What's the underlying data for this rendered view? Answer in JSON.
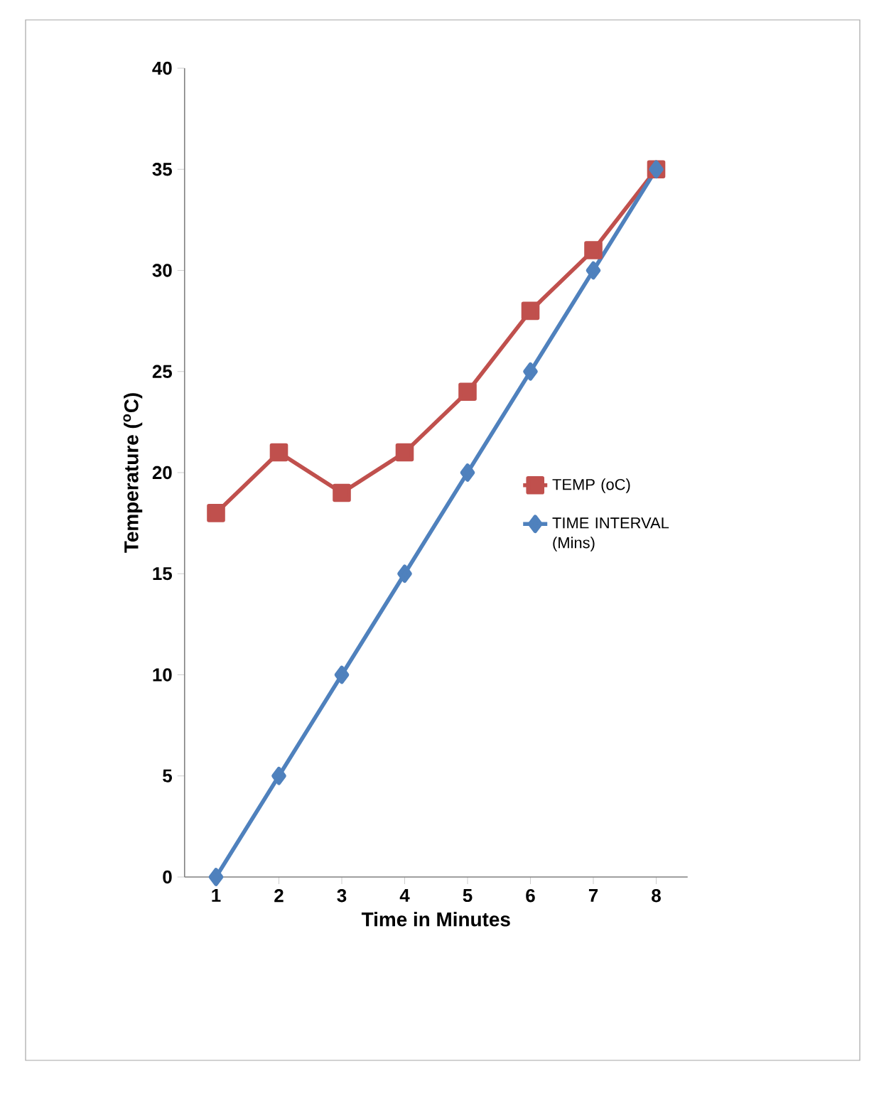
{
  "chart_data": {
    "type": "line",
    "xlabel": "Time in Minutes",
    "ylabel": "Temperature ($^{o}$C)",
    "categories": [
      "1",
      "2",
      "3",
      "4",
      "5",
      "6",
      "7",
      "8"
    ],
    "series": [
      {
        "name": "TEMP (oC)",
        "color": "#c0504d",
        "marker": "square",
        "values": [
          18,
          21,
          19,
          21,
          24,
          28,
          31,
          35
        ]
      },
      {
        "name": "TIME INTERVAL (Mins)",
        "color": "#4f81bd",
        "marker": "diamond",
        "values": [
          0,
          5,
          10,
          15,
          20,
          25,
          30,
          35
        ]
      }
    ],
    "ylim": [
      0,
      40
    ],
    "yticks": [
      0,
      5,
      10,
      15,
      20,
      25,
      30,
      35,
      40
    ],
    "legend": "right",
    "line_style": "solid"
  }
}
